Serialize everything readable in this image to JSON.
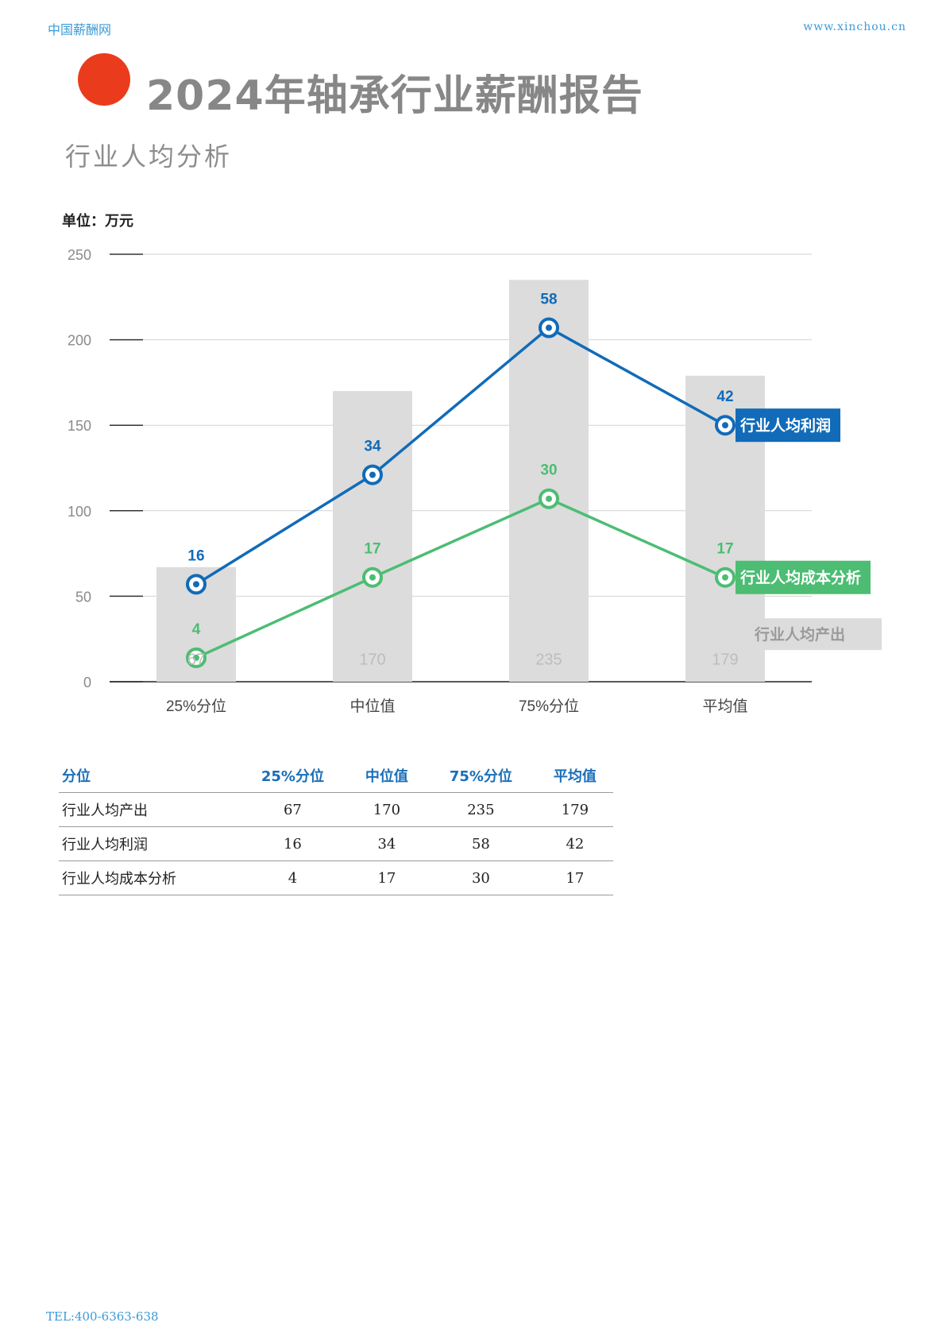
{
  "header": {
    "site_name": "中国薪酬网",
    "site_url": "www.xinchou.cn"
  },
  "title": "2024年轴承行业薪酬报告",
  "section_title": "行业人均分析",
  "unit_label": "单位：万元",
  "colors": {
    "accent_dot": "#ea3c1c",
    "profit": "#116bb8",
    "cost": "#4cbd73",
    "bar": "#dcdcdc",
    "bar_label": "#bdbdbd",
    "axis_text": "#8a8a8a",
    "table_header": "#1a6fb8"
  },
  "chart_data": {
    "type": "bar",
    "categories": [
      "25%分位",
      "中位值",
      "75%分位",
      "平均值"
    ],
    "ylim": [
      0,
      250
    ],
    "yticks": [
      0,
      50,
      100,
      150,
      200,
      250
    ],
    "grid": true,
    "series": [
      {
        "name": "行业人均产出",
        "type": "bar",
        "values": [
          67,
          170,
          235,
          179
        ]
      },
      {
        "name": "行业人均利润",
        "type": "line",
        "values": [
          57,
          121,
          207,
          150
        ],
        "labels": [
          "16",
          "34",
          "58",
          "42"
        ]
      },
      {
        "name": "行业人均成本分析",
        "type": "line",
        "values": [
          14,
          61,
          107,
          61
        ],
        "labels": [
          "4",
          "17",
          "30",
          "17"
        ]
      }
    ]
  },
  "table": {
    "headers": [
      "分位",
      "25%分位",
      "中位值",
      "75%分位",
      "平均值"
    ],
    "rows": [
      [
        "行业人均产出",
        "67",
        "170",
        "235",
        "179"
      ],
      [
        "行业人均利润",
        "16",
        "34",
        "58",
        "42"
      ],
      [
        "行业人均成本分析",
        "4",
        "17",
        "30",
        "17"
      ]
    ]
  },
  "footer": {
    "tel": "TEL:400-6363-638"
  }
}
